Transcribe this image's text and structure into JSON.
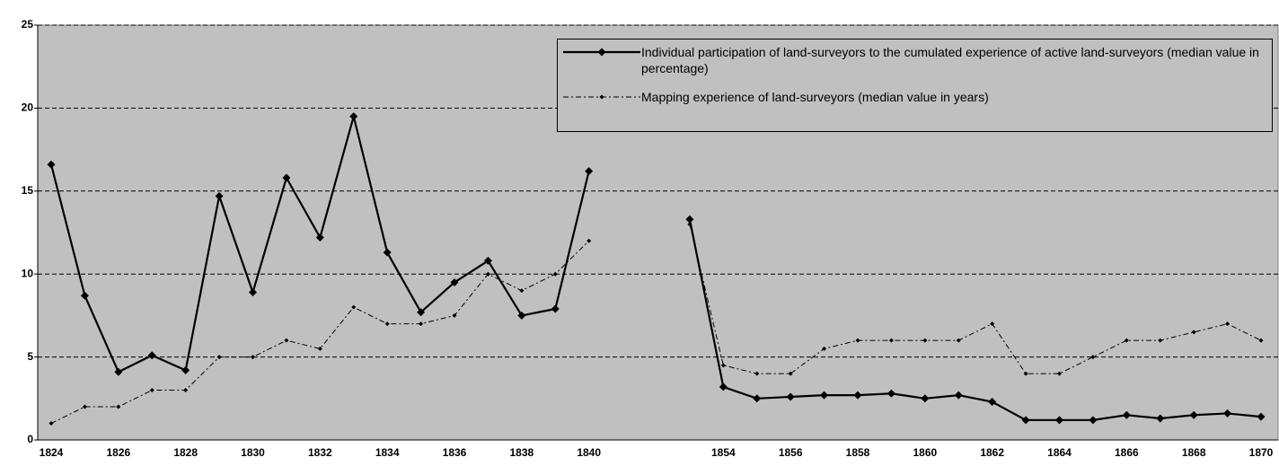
{
  "chart_data": {
    "type": "line",
    "categories": [
      "1824",
      null,
      "1826",
      null,
      "1828",
      null,
      "1830",
      null,
      "1832",
      null,
      "1834",
      null,
      "1836",
      null,
      "1838",
      null,
      "1840",
      null,
      null,
      null,
      "1854",
      null,
      "1856",
      null,
      "1858",
      null,
      "1860",
      null,
      "1862",
      null,
      "1864",
      null,
      "1866",
      null,
      "1868",
      null,
      "1870"
    ],
    "series": [
      {
        "name": "Individual participation of land-surveyors to the cumulated experience of active land-surveyors (median value in percentage)",
        "color": "#000000",
        "line_style": "solid",
        "marker": "diamond",
        "values": [
          16.6,
          8.7,
          4.1,
          5.1,
          4.2,
          14.7,
          8.9,
          15.8,
          12.2,
          19.5,
          11.3,
          7.7,
          9.5,
          10.8,
          7.5,
          7.9,
          16.2,
          null,
          null,
          13.3,
          3.2,
          2.5,
          2.6,
          2.7,
          2.7,
          2.8,
          2.5,
          2.7,
          2.3,
          1.2,
          1.2,
          1.2,
          1.5,
          1.3,
          1.5,
          1.6,
          1.4
        ]
      },
      {
        "name": "Mapping experience of land-surveyors (median value in years)",
        "color": "#000000",
        "line_style": "dashdot",
        "marker": "small-diamond",
        "values": [
          1,
          2,
          2,
          3,
          3,
          5,
          5,
          6,
          5.5,
          8,
          7,
          7,
          7.5,
          10,
          9,
          10,
          12,
          null,
          null,
          13,
          4.5,
          4,
          4,
          5.5,
          6,
          6,
          6,
          6,
          7,
          4,
          4,
          5,
          6,
          6,
          6.5,
          7,
          6
        ]
      }
    ],
    "ylim": [
      0,
      25
    ],
    "yticks": [
      0,
      5,
      10,
      15,
      20,
      25
    ],
    "grid": true,
    "legend": "upper right",
    "background": "#c0c0c0"
  }
}
